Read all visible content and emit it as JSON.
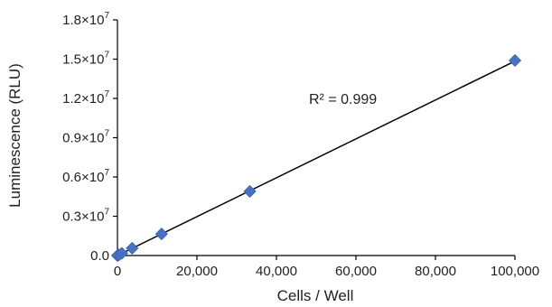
{
  "chart_data": {
    "type": "scatter",
    "title": "",
    "xlabel": "Cells / Well",
    "ylabel": "Luminescence (RLU)",
    "xlim": [
      0,
      100000
    ],
    "ylim": [
      0,
      18000000
    ],
    "x_ticks": [
      {
        "value": 0,
        "label": "0"
      },
      {
        "value": 20000,
        "label": "20,000"
      },
      {
        "value": 40000,
        "label": "40,000"
      },
      {
        "value": 60000,
        "label": "60,000"
      },
      {
        "value": 80000,
        "label": "80,000"
      },
      {
        "value": 100000,
        "label": "100,000"
      }
    ],
    "y_ticks": [
      {
        "value": 0,
        "label": "0.0",
        "exp": ""
      },
      {
        "value": 3000000,
        "label": "0.3×10",
        "exp": "7"
      },
      {
        "value": 6000000,
        "label": "0.6×10",
        "exp": "7"
      },
      {
        "value": 9000000,
        "label": "0.9×10",
        "exp": "7"
      },
      {
        "value": 12000000,
        "label": "1.2×10",
        "exp": "7"
      },
      {
        "value": 15000000,
        "label": "1.5×10",
        "exp": "7"
      },
      {
        "value": 18000000,
        "label": "1.8×10",
        "exp": "7"
      }
    ],
    "points": [
      {
        "x": 0,
        "y": 0
      },
      {
        "x": 400,
        "y": 60000
      },
      {
        "x": 1100,
        "y": 170000
      },
      {
        "x": 3700,
        "y": 560000
      },
      {
        "x": 11100,
        "y": 1650000
      },
      {
        "x": 33300,
        "y": 4900000
      },
      {
        "x": 100000,
        "y": 14900000
      }
    ],
    "trendline": {
      "x": [
        0,
        100000
      ],
      "y": [
        0,
        14850000
      ]
    },
    "marker_color": "#4472C4",
    "trendline_color": "#000000",
    "annotation": {
      "text": "R² = 0.999",
      "x": 55000,
      "y": 12000000
    },
    "grid": false,
    "legend": "none"
  }
}
